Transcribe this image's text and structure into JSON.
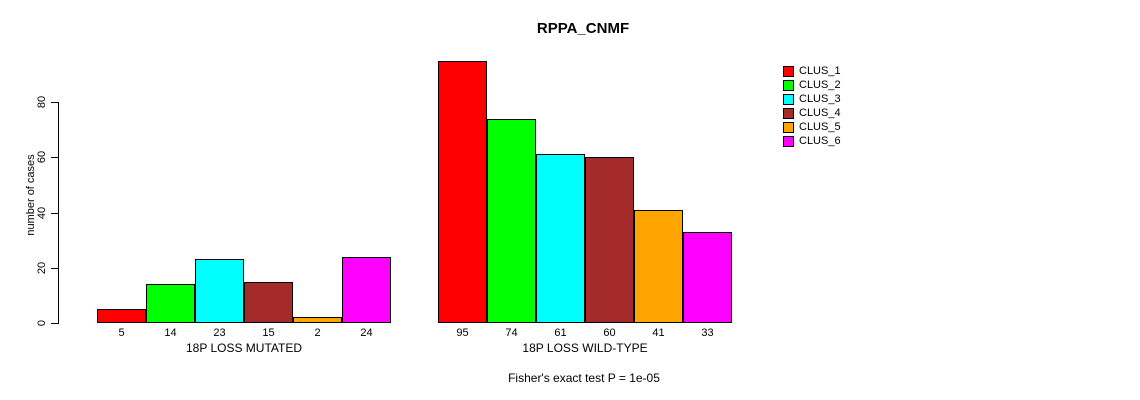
{
  "title": "RPPA_CNMF",
  "chart_data": {
    "type": "bar",
    "title": "RPPA_CNMF",
    "ylabel": "number of cases",
    "xlabel": "",
    "ylim": [
      0,
      95
    ],
    "yticks": [
      0,
      20,
      40,
      60,
      80
    ],
    "grid": false,
    "legend_position": "top-right",
    "legend": [
      "CLUS_1",
      "CLUS_2",
      "CLUS_3",
      "CLUS_4",
      "CLUS_5",
      "CLUS_6"
    ],
    "series_colors": [
      "#ff0000",
      "#00ff00",
      "#00ffff",
      "#a52a2a",
      "#ffa500",
      "#ff00ff"
    ],
    "groups": [
      {
        "label": "18P LOSS MUTATED",
        "values": [
          5,
          14,
          23,
          15,
          2,
          24
        ]
      },
      {
        "label": "18P LOSS WILD-TYPE",
        "values": [
          95,
          74,
          61,
          60,
          41,
          33
        ]
      }
    ],
    "footnote": "Fisher's exact test P = 1e-05"
  }
}
